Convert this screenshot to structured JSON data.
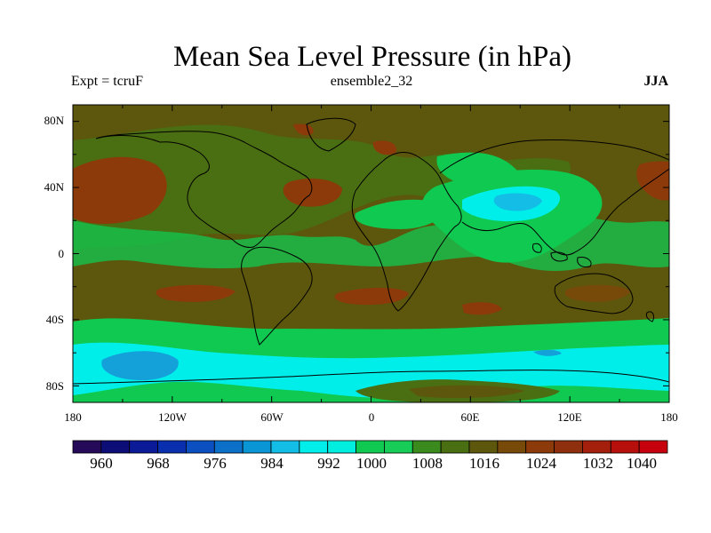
{
  "title": "Mean Sea Level Pressure (in hPa)",
  "experiment": "Expt = tcruF",
  "ensemble": "ensemble2_32",
  "season": "JJA",
  "lat_ticks": [
    "80N",
    "40N",
    "0",
    "40S",
    "80S"
  ],
  "lon_ticks": [
    "180",
    "120W",
    "60W",
    "0",
    "60E",
    "120E",
    "180"
  ],
  "colorbar": {
    "labels": [
      "960",
      "968",
      "976",
      "984",
      "992",
      "1000",
      "1008",
      "1016",
      "1024",
      "1032",
      "1040"
    ],
    "colors": [
      "#250a5a",
      "#0d0d78",
      "#0b1a96",
      "#0a2fae",
      "#0b4fc0",
      "#0c70c8",
      "#0a95d4",
      "#14bde6",
      "#00eeea",
      "#00eee0",
      "#10c950",
      "#18cc58",
      "#3b8a1e",
      "#4a6e12",
      "#5d560d",
      "#774a0a",
      "#8c3a0a",
      "#8e300d",
      "#a4200c",
      "#b7100c",
      "#c7000e"
    ]
  },
  "chart_data": {
    "type": "heatmap",
    "title": "Mean Sea Level Pressure (in hPa)",
    "variable": "Mean Sea Level Pressure",
    "units": "hPa",
    "season": "JJA",
    "experiment": "tcruF",
    "ensemble": "ensemble2_32",
    "x_range": [
      -180,
      180
    ],
    "y_range": [
      -90,
      90
    ],
    "colorbar_levels": [
      960,
      968,
      976,
      984,
      992,
      1000,
      1008,
      1016,
      1024,
      1032,
      1040
    ],
    "colors": {
      "background": "#5d560d",
      "high": "#8c3a0a",
      "low": "#10c950",
      "lower": "#00eeea",
      "lowest": "#14a0d8"
    }
  }
}
